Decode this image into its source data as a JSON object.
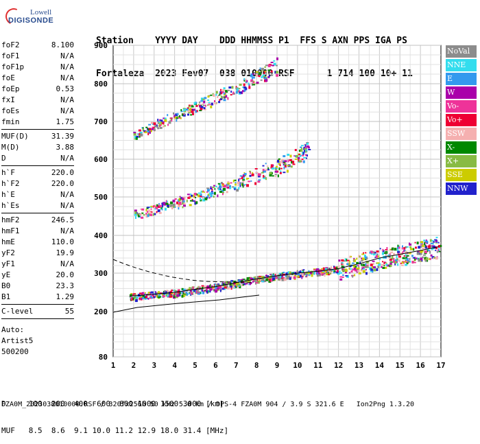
{
  "logo": {
    "line1": "Lowell",
    "line2": "DIGISONDE"
  },
  "header": {
    "line1": "Station    YYYY DAY    DDD HHMMSS P1  FFS S AXN PPS IGA PS",
    "line2": "Fortaleza  2023 Fev07  038 010000 RSF      1 714 100 10+ 11"
  },
  "params": {
    "group1": [
      {
        "label": "foF2",
        "value": "8.100"
      },
      {
        "label": "foF1",
        "value": "N/A"
      },
      {
        "label": "foF1p",
        "value": "N/A"
      },
      {
        "label": "foE",
        "value": "N/A"
      },
      {
        "label": "foEp",
        "value": "0.53"
      },
      {
        "label": "fxI",
        "value": "N/A"
      },
      {
        "label": "foEs",
        "value": "N/A"
      },
      {
        "label": "fmin",
        "value": "1.75"
      }
    ],
    "group2": [
      {
        "label": "MUF(D)",
        "value": "31.39"
      },
      {
        "label": "M(D)",
        "value": "3.88"
      },
      {
        "label": "D",
        "value": "N/A"
      }
    ],
    "group3": [
      {
        "label": "h`F",
        "value": "220.0"
      },
      {
        "label": "h`F2",
        "value": "220.0"
      },
      {
        "label": "h`E",
        "value": "N/A"
      },
      {
        "label": "h`Es",
        "value": "N/A"
      }
    ],
    "group4": [
      {
        "label": "hmF2",
        "value": "246.5"
      },
      {
        "label": "hmF1",
        "value": "N/A"
      },
      {
        "label": "hmE",
        "value": "110.0"
      },
      {
        "label": "yF2",
        "value": "19.9"
      },
      {
        "label": "yF1",
        "value": "N/A"
      },
      {
        "label": "yE",
        "value": "20.0"
      },
      {
        "label": "B0",
        "value": "23.3"
      },
      {
        "label": "B1",
        "value": "1.29"
      }
    ],
    "clevel": {
      "label": "C-level",
      "value": "55"
    },
    "auto": [
      "Auto:",
      "Artist5",
      "500200"
    ]
  },
  "legend": [
    {
      "label": "NoVal",
      "color": "#8c8c8c"
    },
    {
      "label": "NNE",
      "color": "#33ddee"
    },
    {
      "label": "E",
      "color": "#3399ee"
    },
    {
      "label": "W",
      "color": "#aa00aa"
    },
    {
      "label": "Vo-",
      "color": "#ee3399"
    },
    {
      "label": "Vo+",
      "color": "#ee0033"
    },
    {
      "label": "SSW",
      "color": "#f5b0b0"
    },
    {
      "label": "X-",
      "color": "#008800"
    },
    {
      "label": "X+",
      "color": "#88bb44"
    },
    {
      "label": "SSE",
      "color": "#cccc00"
    },
    {
      "label": "NNW",
      "color": "#2222cc"
    }
  ],
  "chart_data": {
    "type": "scatter",
    "xlim": [
      1,
      17
    ],
    "ylim": [
      80,
      900
    ],
    "x_ticks": [
      "1",
      "2",
      "3",
      "4",
      "5",
      "6",
      "7",
      "8",
      "9",
      "10",
      "11",
      "12",
      "13",
      "14",
      "15",
      "16",
      "17"
    ],
    "y_ticks": [
      "80",
      "200",
      "300",
      "400",
      "500",
      "600",
      "700",
      "800",
      "900"
    ],
    "traces": [
      {
        "name": "F trace",
        "points": [
          [
            1.8,
            240
          ],
          [
            3,
            245
          ],
          [
            4,
            250
          ],
          [
            5,
            258
          ],
          [
            6,
            265
          ],
          [
            7,
            275
          ],
          [
            8,
            285
          ],
          [
            9,
            293
          ],
          [
            10,
            300
          ],
          [
            11,
            305
          ],
          [
            12,
            312
          ],
          [
            13,
            325
          ],
          [
            14,
            340
          ],
          [
            15,
            350
          ],
          [
            16,
            360
          ],
          [
            16.9,
            370
          ]
        ]
      },
      {
        "name": "2F echo",
        "points": [
          [
            2,
            455
          ],
          [
            3,
            470
          ],
          [
            4,
            485
          ],
          [
            5,
            500
          ],
          [
            6,
            520
          ],
          [
            7,
            540
          ],
          [
            8,
            560
          ],
          [
            9,
            580
          ],
          [
            10,
            610
          ],
          [
            10.5,
            630
          ]
        ]
      },
      {
        "name": "3F echo",
        "points": [
          [
            2,
            665
          ],
          [
            3,
            690
          ],
          [
            4,
            715
          ],
          [
            5,
            740
          ],
          [
            6,
            765
          ],
          [
            7,
            790
          ],
          [
            8,
            820
          ],
          [
            9,
            850
          ]
        ]
      }
    ],
    "grid": true
  },
  "bottom": {
    "line1": "D     100  200  400  600  800 1000 1500 3000 [km]",
    "line2": "MUF   8.5  8.6  9.1 10.0 11.2 12.9 18.0 31.4 [MHz]"
  },
  "footer": "FZA0M_2023038010000.RSF / 320fx256h 50 kHz 5.0 km / DPS-4 FZA0M 904 / 3.9 S 321.6 E   Ion2Png 1.3.20"
}
